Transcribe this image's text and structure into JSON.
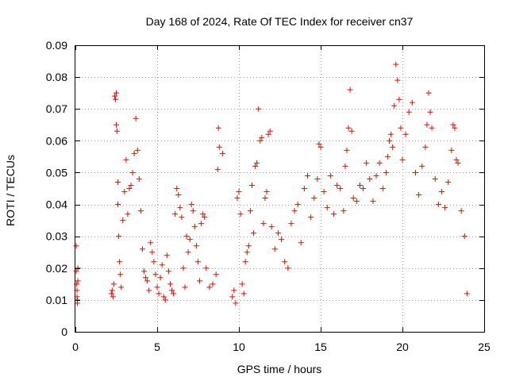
{
  "chart_data": {
    "type": "scatter",
    "title": "Day 168 of 2024, Rate Of TEC Index for receiver cn37",
    "xlabel": "GPS time / hours",
    "ylabel": "ROTI / TECUs",
    "xlim": [
      0,
      25
    ],
    "ylim": [
      0,
      0.09
    ],
    "x_ticks": [
      0,
      5,
      10,
      15,
      20,
      25
    ],
    "y_ticks": [
      0,
      0.01,
      0.02,
      0.03,
      0.04,
      0.05,
      0.06,
      0.07,
      0.08,
      0.09
    ],
    "x_tick_labels": [
      "0",
      "5",
      "10",
      "15",
      "20",
      "25"
    ],
    "y_tick_labels": [
      "0",
      "0.01",
      "0.02",
      "0.03",
      "0.04",
      "0.05",
      "0.06",
      "0.07",
      "0.08",
      "0.09"
    ],
    "grid": true,
    "marker": "plus",
    "series_color": "#ff0000",
    "series": [
      {
        "x": [
          0.05,
          0.05,
          0.08,
          0.1,
          0.1,
          0.12,
          0.12,
          0.15,
          0.15,
          2.2,
          2.25,
          2.3,
          2.35,
          2.4,
          2.45,
          2.5,
          2.5,
          2.55,
          2.6,
          2.6,
          2.65,
          2.7,
          2.75,
          2.8,
          2.9,
          3.0,
          3.1,
          3.2,
          3.3,
          3.4,
          3.5,
          3.6,
          3.7,
          3.8,
          3.9,
          4.0,
          4.1,
          4.2,
          4.3,
          4.4,
          4.5,
          4.6,
          4.7,
          4.8,
          4.9,
          5.0,
          5.1,
          5.2,
          5.3,
          5.4,
          5.5,
          5.6,
          5.7,
          5.8,
          5.9,
          6.0,
          6.1,
          6.2,
          6.3,
          6.4,
          6.5,
          6.6,
          6.7,
          6.8,
          6.9,
          7.0,
          7.1,
          7.2,
          7.3,
          7.4,
          7.5,
          7.6,
          7.7,
          7.8,
          7.9,
          8.0,
          8.2,
          8.4,
          8.6,
          8.7,
          8.75,
          8.8,
          9.0,
          9.6,
          9.7,
          9.8,
          9.9,
          10.0,
          10.1,
          10.2,
          10.3,
          10.4,
          10.5,
          10.6,
          10.7,
          10.8,
          10.9,
          11.0,
          11.1,
          11.2,
          11.3,
          11.4,
          11.5,
          11.6,
          11.7,
          11.8,
          11.9,
          12.0,
          12.2,
          12.4,
          12.6,
          12.8,
          13.0,
          13.2,
          13.4,
          13.6,
          13.8,
          14.0,
          14.2,
          14.4,
          14.6,
          14.8,
          14.9,
          15.0,
          15.2,
          15.4,
          15.6,
          15.8,
          16.0,
          16.2,
          16.4,
          16.5,
          16.6,
          16.7,
          16.8,
          16.9,
          17.0,
          17.2,
          17.4,
          17.6,
          17.8,
          18.0,
          18.2,
          18.4,
          18.6,
          18.8,
          19.0,
          19.1,
          19.2,
          19.3,
          19.4,
          19.5,
          19.6,
          19.7,
          19.8,
          19.9,
          20.0,
          20.2,
          20.4,
          20.6,
          20.8,
          21.0,
          21.2,
          21.4,
          21.5,
          21.6,
          21.7,
          21.8,
          22.0,
          22.2,
          22.4,
          22.6,
          22.8,
          23.0,
          23.1,
          23.2,
          23.3,
          23.4,
          23.6,
          23.8,
          23.95
        ],
        "y": [
          0.027,
          0.019,
          0.015,
          0.013,
          0.011,
          0.01,
          0.009,
          0.02,
          0.016,
          0.012,
          0.013,
          0.011,
          0.015,
          0.074,
          0.073,
          0.075,
          0.065,
          0.063,
          0.047,
          0.04,
          0.03,
          0.022,
          0.018,
          0.014,
          0.035,
          0.044,
          0.054,
          0.037,
          0.045,
          0.046,
          0.05,
          0.056,
          0.067,
          0.057,
          0.048,
          0.038,
          0.026,
          0.019,
          0.017,
          0.016,
          0.013,
          0.028,
          0.025,
          0.022,
          0.018,
          0.014,
          0.012,
          0.017,
          0.021,
          0.011,
          0.01,
          0.024,
          0.019,
          0.015,
          0.013,
          0.012,
          0.037,
          0.045,
          0.043,
          0.039,
          0.036,
          0.02,
          0.014,
          0.03,
          0.025,
          0.029,
          0.04,
          0.038,
          0.033,
          0.027,
          0.022,
          0.016,
          0.034,
          0.037,
          0.036,
          0.02,
          0.014,
          0.015,
          0.018,
          0.051,
          0.064,
          0.058,
          0.056,
          0.011,
          0.013,
          0.009,
          0.042,
          0.044,
          0.037,
          0.015,
          0.012,
          0.022,
          0.025,
          0.027,
          0.038,
          0.046,
          0.031,
          0.052,
          0.053,
          0.07,
          0.06,
          0.061,
          0.034,
          0.042,
          0.044,
          0.062,
          0.063,
          0.033,
          0.026,
          0.031,
          0.029,
          0.022,
          0.02,
          0.034,
          0.038,
          0.04,
          0.028,
          0.045,
          0.049,
          0.036,
          0.042,
          0.048,
          0.059,
          0.058,
          0.044,
          0.039,
          0.049,
          0.037,
          0.046,
          0.045,
          0.038,
          0.052,
          0.057,
          0.064,
          0.076,
          0.063,
          0.042,
          0.041,
          0.046,
          0.045,
          0.053,
          0.048,
          0.041,
          0.049,
          0.053,
          0.045,
          0.05,
          0.055,
          0.06,
          0.062,
          0.058,
          0.071,
          0.084,
          0.079,
          0.073,
          0.064,
          0.054,
          0.062,
          0.069,
          0.072,
          0.05,
          0.043,
          0.052,
          0.058,
          0.065,
          0.075,
          0.069,
          0.064,
          0.048,
          0.04,
          0.044,
          0.039,
          0.047,
          0.057,
          0.065,
          0.064,
          0.054,
          0.053,
          0.038,
          0.03,
          0.012
        ]
      }
    ]
  }
}
